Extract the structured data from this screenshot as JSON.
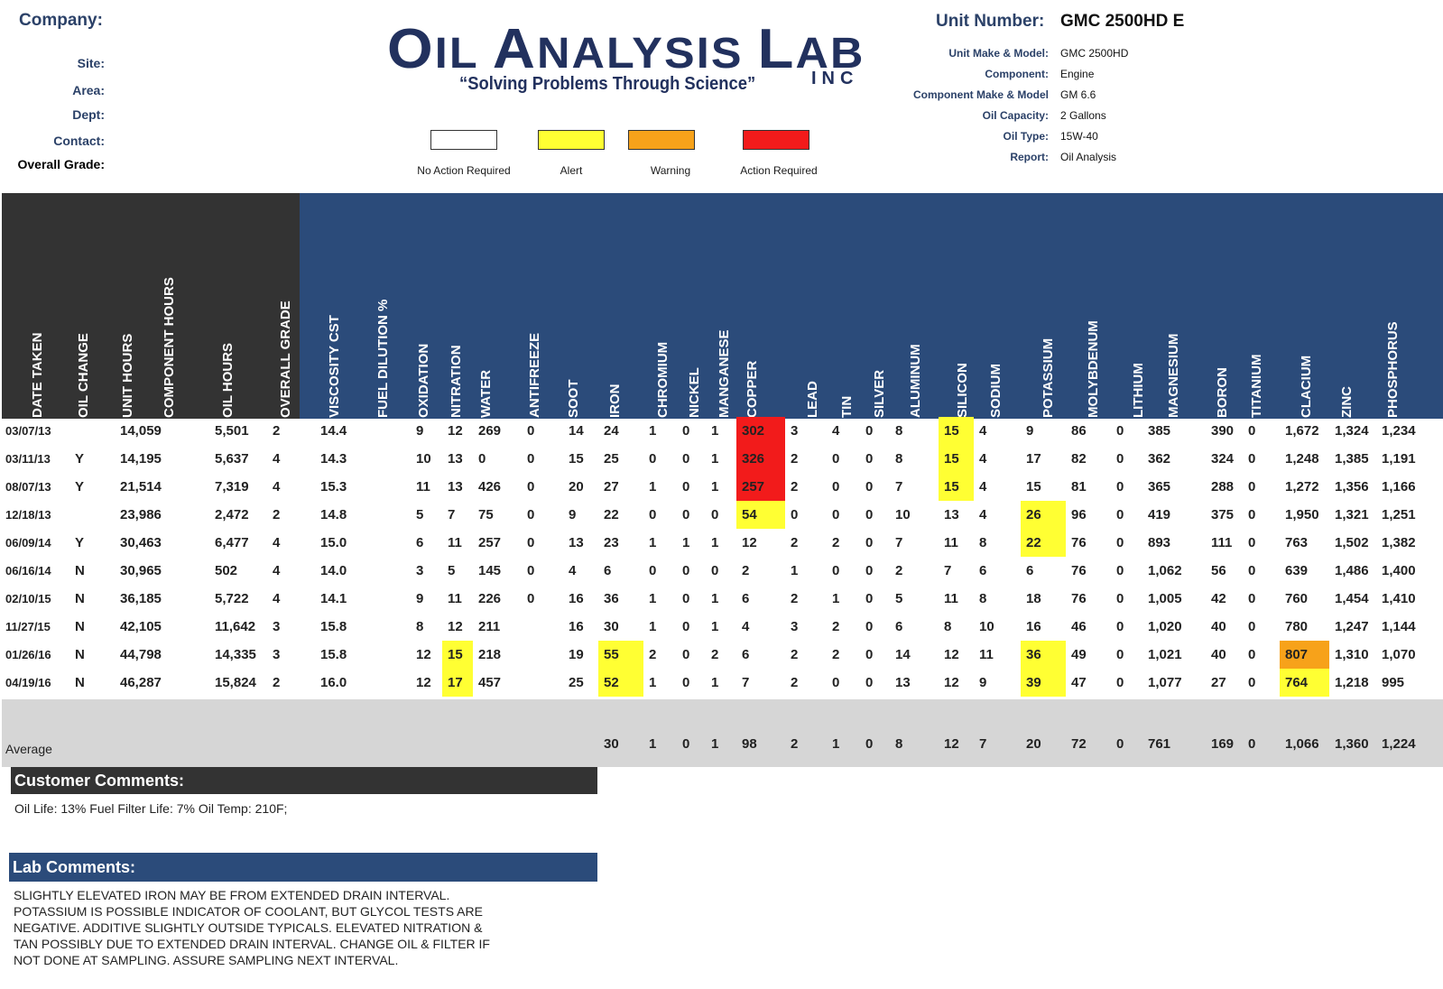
{
  "header": {
    "company_label": "Company:",
    "left_labels": [
      "Site:",
      "Area:",
      "Dept:",
      "Contact:",
      "Overall Grade:"
    ],
    "logo_main_first": "O",
    "logo_main_rest": "IL ",
    "logo_main_a": "A",
    "logo_main_nalysis": "NALYSIS ",
    "logo_main_l": "L",
    "logo_main_ab": "AB",
    "logo_inc": "INC",
    "logo_tagline": "“Solving Problems Through Science”",
    "unit_number_label": "Unit Number:",
    "unit_number_value": "GMC 2500HD E",
    "details": [
      {
        "label": "Unit Make & Model:",
        "value": "GMC 2500HD"
      },
      {
        "label": "Component:",
        "value": "Engine"
      },
      {
        "label": "Component Make & Model",
        "value": "GM 6.6"
      },
      {
        "label": "Oil Capacity:",
        "value": "2 Gallons"
      },
      {
        "label": "Oil Type:",
        "value": "15W-40"
      },
      {
        "label": "Report:",
        "value": "Oil Analysis"
      }
    ]
  },
  "legend": [
    {
      "label": "No Action Required",
      "color": "#ffffff"
    },
    {
      "label": "Alert",
      "color": "#ffff33"
    },
    {
      "label": "Warning",
      "color": "#f7a21a"
    },
    {
      "label": "Action Required",
      "color": "#f21b1b"
    }
  ],
  "columns": [
    "DATE TAKEN",
    "OIL CHANGE",
    "UNIT HOURS",
    "COMPONENT HOURS",
    "OIL HOURS",
    "OVERALL GRADE",
    "VISCOSITY CST",
    "FUEL DILUTION %",
    "OXIDATION",
    "NITRATION",
    "WATER",
    "ANTIFREEZE",
    "SOOT",
    "IRON",
    "CHROMIUM",
    "NICKEL",
    "MANGANESE",
    "COPPER",
    "LEAD",
    "TIN",
    "SILVER",
    "ALUMINUM",
    "SILICON",
    "SODIUM",
    "POTASSIUM",
    "MOLYBDENUM",
    "LITHIUM",
    "MAGNESIUM",
    "BORON",
    "TITANIUM",
    "CLACIUM",
    "ZINC",
    "PHOSPHORUS"
  ],
  "rows": [
    [
      "03/07/13",
      "",
      "14,059",
      "",
      "5,501",
      "2",
      "14.4",
      "",
      "9",
      "12",
      "269",
      "0",
      "14",
      "24",
      "1",
      "0",
      "1",
      "302",
      "3",
      "4",
      "0",
      "8",
      "15",
      "4",
      "9",
      "86",
      "0",
      "385",
      "390",
      "0",
      "1,672",
      "1,324",
      "1,234"
    ],
    [
      "03/11/13",
      "Y",
      "14,195",
      "",
      "5,637",
      "4",
      "14.3",
      "",
      "10",
      "13",
      "0",
      "0",
      "15",
      "25",
      "0",
      "0",
      "1",
      "326",
      "2",
      "0",
      "0",
      "8",
      "15",
      "4",
      "17",
      "82",
      "0",
      "362",
      "324",
      "0",
      "1,248",
      "1,385",
      "1,191"
    ],
    [
      "08/07/13",
      "Y",
      "21,514",
      "",
      "7,319",
      "4",
      "15.3",
      "",
      "11",
      "13",
      "426",
      "0",
      "20",
      "27",
      "1",
      "0",
      "1",
      "257",
      "2",
      "0",
      "0",
      "7",
      "15",
      "4",
      "15",
      "81",
      "0",
      "365",
      "288",
      "0",
      "1,272",
      "1,356",
      "1,166"
    ],
    [
      "12/18/13",
      "",
      "23,986",
      "",
      "2,472",
      "2",
      "14.8",
      "",
      "5",
      "7",
      "75",
      "0",
      "9",
      "22",
      "0",
      "0",
      "0",
      "54",
      "0",
      "0",
      "0",
      "10",
      "13",
      "4",
      "26",
      "96",
      "0",
      "419",
      "375",
      "0",
      "1,950",
      "1,321",
      "1,251"
    ],
    [
      "06/09/14",
      "Y",
      "30,463",
      "",
      "6,477",
      "4",
      "15.0",
      "",
      "6",
      "11",
      "257",
      "0",
      "13",
      "23",
      "1",
      "1",
      "1",
      "12",
      "2",
      "2",
      "0",
      "7",
      "11",
      "8",
      "22",
      "76",
      "0",
      "893",
      "111",
      "0",
      "763",
      "1,502",
      "1,382"
    ],
    [
      "06/16/14",
      "N",
      "30,965",
      "",
      "502",
      "4",
      "14.0",
      "",
      "3",
      "5",
      "145",
      "0",
      "4",
      "6",
      "0",
      "0",
      "0",
      "2",
      "1",
      "0",
      "0",
      "2",
      "7",
      "6",
      "6",
      "76",
      "0",
      "1,062",
      "56",
      "0",
      "639",
      "1,486",
      "1,400"
    ],
    [
      "02/10/15",
      "N",
      "36,185",
      "",
      "5,722",
      "4",
      "14.1",
      "",
      "9",
      "11",
      "226",
      "0",
      "16",
      "36",
      "1",
      "0",
      "1",
      "6",
      "2",
      "1",
      "0",
      "5",
      "11",
      "8",
      "18",
      "76",
      "0",
      "1,005",
      "42",
      "0",
      "760",
      "1,454",
      "1,410"
    ],
    [
      "11/27/15",
      "N",
      "42,105",
      "",
      "11,642",
      "3",
      "15.8",
      "",
      "8",
      "12",
      "211",
      "",
      "16",
      "30",
      "1",
      "0",
      "1",
      "4",
      "3",
      "2",
      "0",
      "6",
      "8",
      "10",
      "16",
      "46",
      "0",
      "1,020",
      "40",
      "0",
      "780",
      "1,247",
      "1,144"
    ],
    [
      "01/26/16",
      "N",
      "44,798",
      "",
      "14,335",
      "3",
      "15.8",
      "",
      "12",
      "15",
      "218",
      "",
      "19",
      "55",
      "2",
      "0",
      "2",
      "6",
      "2",
      "2",
      "0",
      "14",
      "12",
      "11",
      "36",
      "49",
      "0",
      "1,021",
      "40",
      "0",
      "807",
      "1,310",
      "1,070"
    ],
    [
      "04/19/16",
      "N",
      "46,287",
      "",
      "15,824",
      "2",
      "16.0",
      "",
      "12",
      "17",
      "457",
      "",
      "25",
      "52",
      "1",
      "0",
      "1",
      "7",
      "2",
      "0",
      "0",
      "13",
      "12",
      "9",
      "39",
      "47",
      "0",
      "1,077",
      "27",
      "0",
      "764",
      "1,218",
      "995"
    ]
  ],
  "highlights": [
    {
      "row": 0,
      "col": 17,
      "level": "red"
    },
    {
      "row": 1,
      "col": 17,
      "level": "red"
    },
    {
      "row": 2,
      "col": 17,
      "level": "red"
    },
    {
      "row": 3,
      "col": 17,
      "level": "yellow"
    },
    {
      "row": 0,
      "col": 22,
      "level": "yellow"
    },
    {
      "row": 1,
      "col": 22,
      "level": "yellow"
    },
    {
      "row": 2,
      "col": 22,
      "level": "yellow"
    },
    {
      "row": 3,
      "col": 24,
      "level": "yellow"
    },
    {
      "row": 4,
      "col": 24,
      "level": "yellow"
    },
    {
      "row": 8,
      "col": 24,
      "level": "yellow"
    },
    {
      "row": 9,
      "col": 24,
      "level": "yellow"
    },
    {
      "row": 8,
      "col": 9,
      "level": "yellow"
    },
    {
      "row": 9,
      "col": 9,
      "level": "yellow"
    },
    {
      "row": 8,
      "col": 13,
      "level": "yellow"
    },
    {
      "row": 9,
      "col": 13,
      "level": "yellow"
    },
    {
      "row": 8,
      "col": 30,
      "level": "orange"
    },
    {
      "row": 9,
      "col": 30,
      "level": "yellow"
    }
  ],
  "average": {
    "label": "Average",
    "values": [
      "",
      "",
      "",
      "",
      "",
      "",
      "",
      "",
      "",
      "",
      "",
      "",
      "",
      "30",
      "1",
      "0",
      "1",
      "98",
      "2",
      "1",
      "0",
      "8",
      "12",
      "7",
      "20",
      "72",
      "0",
      "761",
      "169",
      "0",
      "1,066",
      "1,360",
      "1,224"
    ]
  },
  "customer_comments": {
    "title": "Customer Comments:",
    "text": "Oil Life: 13% Fuel Filter Life: 7% Oil Temp: 210F;"
  },
  "lab_comments": {
    "title": "Lab Comments:",
    "lines": [
      "SLIGHTLY ELEVATED IRON MAY BE FROM EXTENDED DRAIN INTERVAL.",
      "POTASSIUM IS POSSIBLE INDICATOR OF COOLANT, BUT GLYCOL TESTS ARE",
      "NEGATIVE. ADDITIVE SLIGHTLY OUTSIDE TYPICALS. ELEVATED NITRATION &",
      "TAN POSSIBLY DUE TO EXTENDED DRAIN INTERVAL. CHANGE OIL & FILTER IF",
      "NOT DONE AT SAMPLING. ASSURE SAMPLING NEXT INTERVAL."
    ]
  }
}
